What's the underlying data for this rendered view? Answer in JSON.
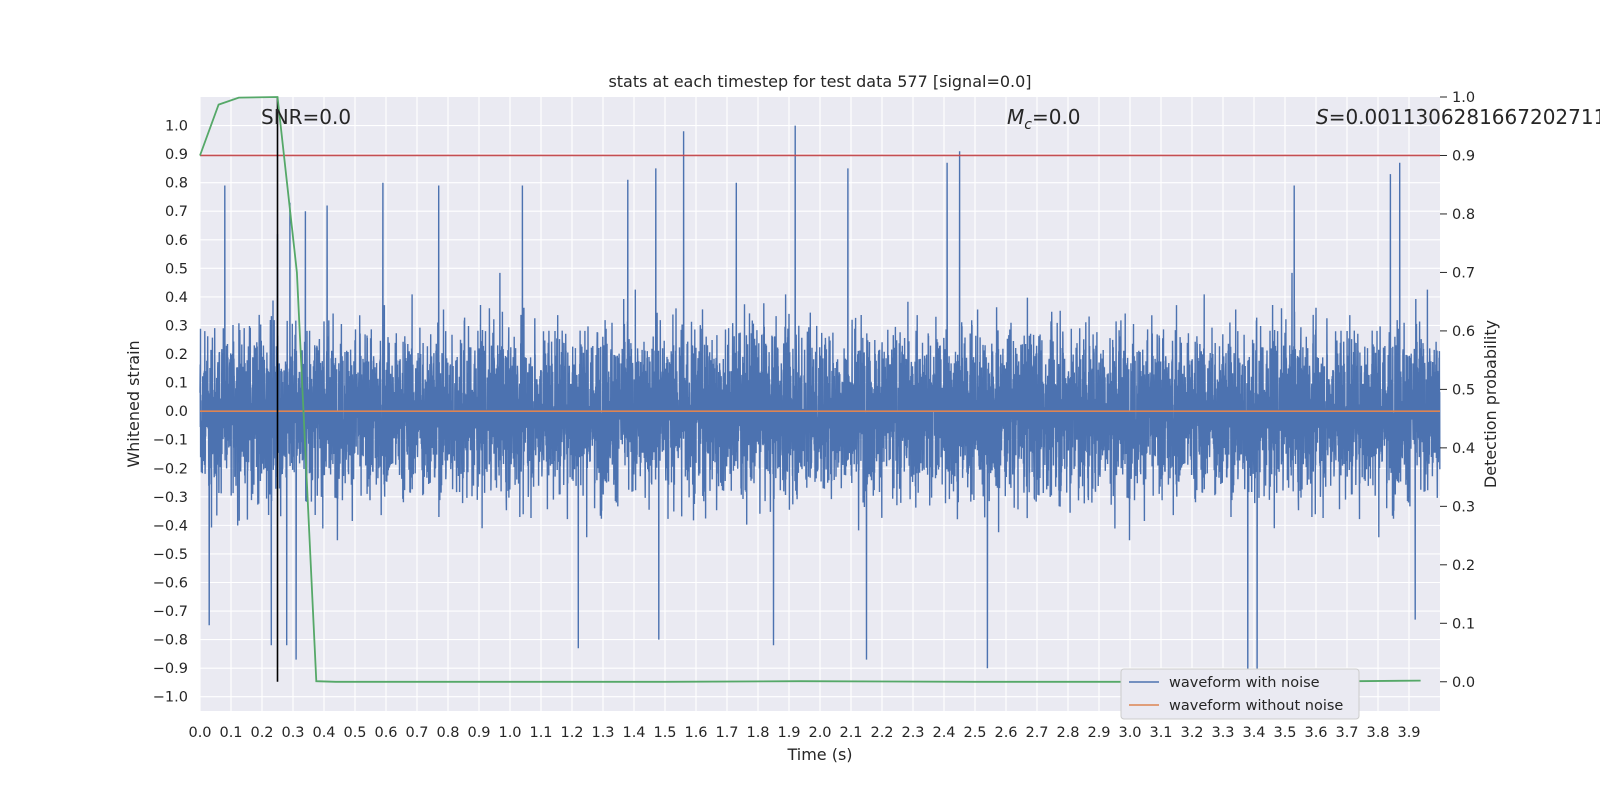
{
  "chart_data": {
    "type": "line",
    "title": "stats at each timestep for test data 577 [signal=0.0]",
    "xlabel": "Time (s)",
    "ylabel": "Whitened strain",
    "y2label": "Detection probability",
    "xlim": [
      0.0,
      4.0
    ],
    "ylim": [
      -1.05,
      1.1
    ],
    "y2lim": [
      -0.05,
      1.0
    ],
    "x_ticks": [
      "0.0",
      "0.1",
      "0.2",
      "0.3",
      "0.4",
      "0.5",
      "0.6",
      "0.7",
      "0.8",
      "0.9",
      "1.0",
      "1.1",
      "1.2",
      "1.3",
      "1.4",
      "1.5",
      "1.6",
      "1.7",
      "1.8",
      "1.9",
      "2.0",
      "2.1",
      "2.2",
      "2.3",
      "2.4",
      "2.5",
      "2.6",
      "2.7",
      "2.8",
      "2.9",
      "3.0",
      "3.1",
      "3.2",
      "3.3",
      "3.4",
      "3.5",
      "3.6",
      "3.7",
      "3.8",
      "3.9"
    ],
    "y_ticks": [
      "1.0",
      "0.9",
      "0.8",
      "0.7",
      "0.6",
      "0.5",
      "0.4",
      "0.3",
      "0.2",
      "0.1",
      "0.0",
      "-0.1",
      "-0.2",
      "-0.3",
      "-0.4",
      "-0.5",
      "-0.6",
      "-0.7",
      "-0.8",
      "-0.9",
      "-1.0"
    ],
    "y2_ticks": [
      "1.0",
      "0.9",
      "0.8",
      "0.7",
      "0.6",
      "0.5",
      "0.4",
      "0.3",
      "0.2",
      "0.1",
      "0.0"
    ],
    "grid": true,
    "legend_position": "lower-right",
    "annotations": {
      "snr": "SNR=0.0",
      "mc_symbol": "M",
      "mc_sub": "c",
      "mc_value": "=0.0",
      "s_symbol": "S",
      "s_value": "=0.0011306281667202711"
    },
    "series": [
      {
        "name": "waveform with noise",
        "axis": "left",
        "color": "#4c72b0",
        "description_values": "noisy whitened strain sampled at 2048 Hz, amplitude mostly within ±0.5 with spikes near ±1.0",
        "spikes": [
          {
            "x": 0.08,
            "y": 0.79
          },
          {
            "x": 0.25,
            "y": 0.62
          },
          {
            "x": 0.29,
            "y": 0.73
          },
          {
            "x": 0.34,
            "y": 0.7
          },
          {
            "x": 0.41,
            "y": 0.72
          },
          {
            "x": 0.59,
            "y": 0.8
          },
          {
            "x": 0.77,
            "y": 0.79
          },
          {
            "x": 1.04,
            "y": 0.79
          },
          {
            "x": 1.38,
            "y": 0.81
          },
          {
            "x": 1.47,
            "y": 0.85
          },
          {
            "x": 1.56,
            "y": 0.98
          },
          {
            "x": 1.73,
            "y": 0.8
          },
          {
            "x": 1.92,
            "y": 1.0
          },
          {
            "x": 2.09,
            "y": 0.85
          },
          {
            "x": 2.41,
            "y": 0.87
          },
          {
            "x": 2.45,
            "y": 0.91
          },
          {
            "x": 3.53,
            "y": 0.79
          },
          {
            "x": 3.84,
            "y": 0.83
          },
          {
            "x": 3.87,
            "y": 0.87
          },
          {
            "x": 0.03,
            "y": -0.75
          },
          {
            "x": 0.23,
            "y": -0.82
          },
          {
            "x": 0.31,
            "y": -0.87
          },
          {
            "x": 0.28,
            "y": -0.82
          },
          {
            "x": 1.22,
            "y": -0.83
          },
          {
            "x": 1.48,
            "y": -0.8
          },
          {
            "x": 1.85,
            "y": -0.82
          },
          {
            "x": 2.15,
            "y": -0.87
          },
          {
            "x": 2.54,
            "y": -0.9
          },
          {
            "x": 3.38,
            "y": -1.05
          },
          {
            "x": 3.41,
            "y": -1.0
          },
          {
            "x": 3.92,
            "y": -0.73
          }
        ]
      },
      {
        "name": "waveform without noise",
        "axis": "left",
        "color": "#dd8452",
        "x": [
          0.0,
          4.0
        ],
        "y": [
          0.0,
          0.0
        ]
      },
      {
        "name": "detection probability",
        "axis": "right",
        "color": "#55a868",
        "x": [
          0.0,
          0.06,
          0.125,
          0.25,
          0.3125,
          0.375,
          0.4375,
          0.5,
          1.0,
          1.5,
          1.9375,
          2.5,
          3.0,
          3.5,
          3.9375
        ],
        "y": [
          0.9,
          0.987,
          0.999,
          1.0,
          0.7,
          0.001,
          0.0,
          0.0,
          0.0,
          0.0,
          0.001,
          0.0,
          0.0,
          0.0,
          0.002
        ]
      }
    ],
    "hlines": [
      {
        "axis": "right",
        "y": 0.9,
        "color": "#c44e52"
      }
    ],
    "vlines": [
      {
        "x": 0.25,
        "ymin": 0.0,
        "ymax": 1.0,
        "axis": "right",
        "color": "#000000"
      }
    ]
  }
}
